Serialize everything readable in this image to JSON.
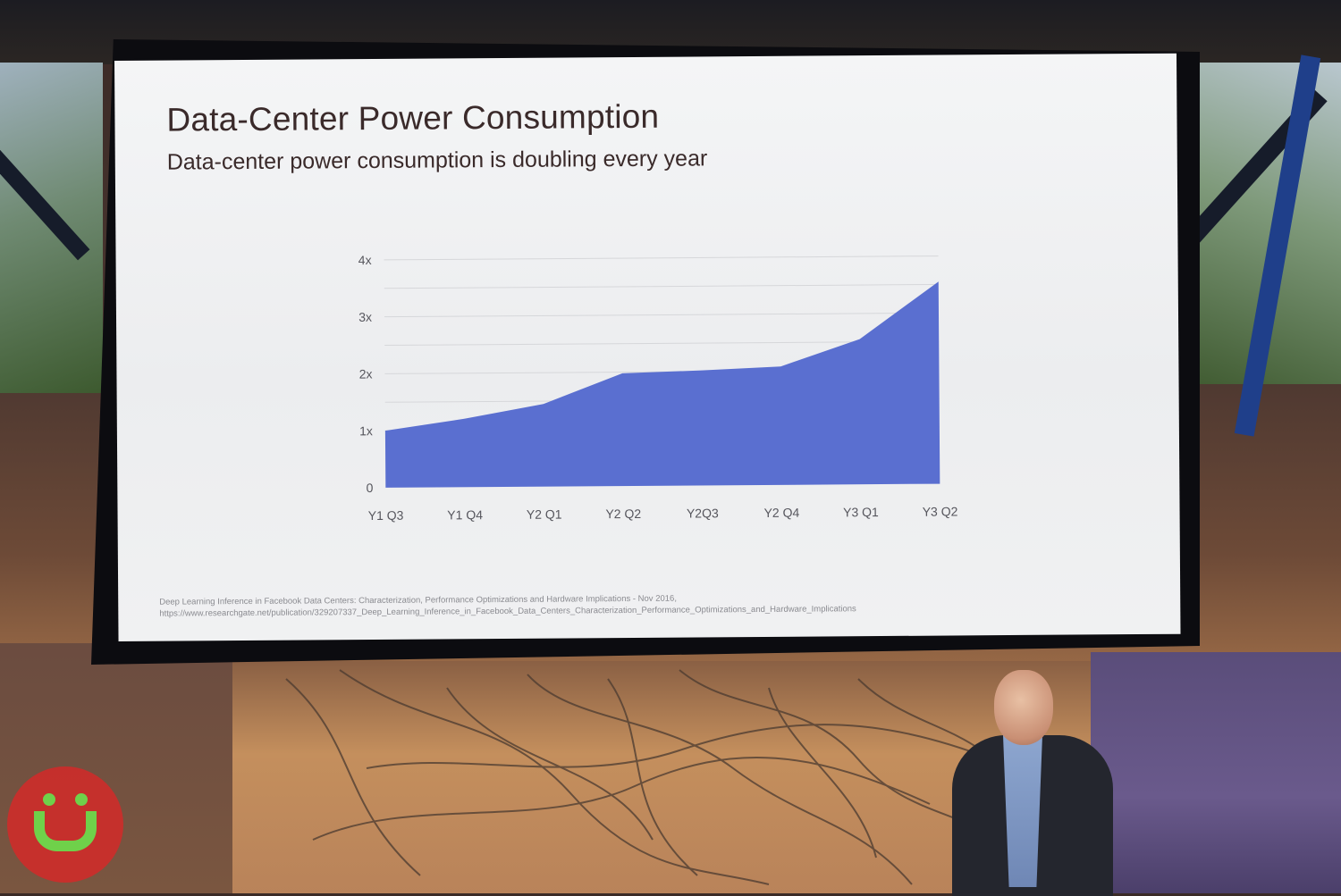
{
  "slide": {
    "title": "Data-Center Power Consumption",
    "subtitle": "Data-center power consumption is doubling every year",
    "footnote_line1": "Deep Learning Inference in Facebook Data Centers: Characterization, Performance Optimizations and Hardware Implications - Nov 2016,",
    "footnote_line2": "https://www.researchgate.net/publication/329207337_Deep_Learning_Inference_in_Facebook_Data_Centers_Characterization_Performance_Optimizations_and_Hardware_Implications"
  },
  "chart_data": {
    "type": "area",
    "categories": [
      "Y1 Q3",
      "Y1 Q4",
      "Y2 Q1",
      "Y2 Q2",
      "Y2Q3",
      "Y2 Q4",
      "Y3 Q1",
      "Y3 Q2"
    ],
    "series": [
      {
        "values": [
          1.0,
          1.2,
          1.45,
          1.98,
          2.02,
          2.08,
          2.55,
          3.55
        ]
      }
    ],
    "y_ticks": [
      {
        "value": 0,
        "label": "0"
      },
      {
        "value": 1,
        "label": "1x"
      },
      {
        "value": 2,
        "label": "2x"
      },
      {
        "value": 3,
        "label": "3x"
      },
      {
        "value": 4,
        "label": "4x"
      }
    ],
    "ylim": [
      0,
      4
    ],
    "minor_gridlines": [
      0.5,
      1.5,
      2.5,
      3.5
    ],
    "grid": true,
    "legend": "none",
    "xlabel": "",
    "ylabel": "",
    "color": "#5a6fd0"
  }
}
